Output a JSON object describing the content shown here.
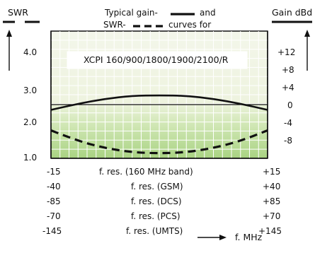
{
  "chart_data": {
    "type": "line",
    "title": "XCPI 160/900/1800/1900/2100/R",
    "left_axis": {
      "label": "SWR",
      "ticks": [
        "4.0",
        "3.0",
        "2.0",
        "1.0"
      ],
      "ylim": [
        1.0,
        4.0
      ]
    },
    "right_axis": {
      "label": "Gain dBd",
      "ticks": [
        "+12",
        "+8",
        "+4",
        "0",
        "-4",
        "-8"
      ],
      "ylim": [
        -11,
        16
      ]
    },
    "x_axis": {
      "label": "f. MHz",
      "xlim": [
        -1,
        1
      ],
      "bands": [
        {
          "left": "-15",
          "name": "f. res. (160 MHz band)",
          "right": "+15"
        },
        {
          "left": "-40",
          "name": "f. res. (GSM)",
          "right": "+40"
        },
        {
          "left": "-85",
          "name": "f. res. (DCS)",
          "right": "+85"
        },
        {
          "left": "-70",
          "name": "f. res. (PCS)",
          "right": "+70"
        },
        {
          "left": "-145",
          "name": "f. res. (UMTS)",
          "right": "+145"
        }
      ]
    },
    "legend": {
      "line1_prefix": "Typical gain-",
      "line1_suffix": "and",
      "line2_prefix": "SWR-",
      "line2_suffix": "curves for",
      "placement": "top-center"
    },
    "series": [
      {
        "name": "gain",
        "axis": "right",
        "style": "solid",
        "x": [
          -1,
          -0.75,
          -0.5,
          -0.25,
          0,
          0.25,
          0.5,
          0.75,
          1
        ],
        "values": [
          -1.2,
          0.2,
          1.3,
          2.0,
          2.1,
          2.0,
          1.3,
          0.2,
          -1.2
        ]
      },
      {
        "name": "swr",
        "axis": "left",
        "style": "dashed",
        "x": [
          -1,
          -0.75,
          -0.5,
          -0.25,
          0,
          0.25,
          0.5,
          0.75,
          1
        ],
        "values": [
          1.75,
          1.45,
          1.25,
          1.13,
          1.1,
          1.13,
          1.25,
          1.45,
          1.75
        ]
      }
    ],
    "grid": true,
    "colors": {
      "grid_line": "#ffffff",
      "grid_bg_top": "#f2f6e6",
      "grid_bg_mid": "#cfe6b0",
      "grid_bg_bottom": "#a8d47f",
      "border": "#111111"
    }
  }
}
